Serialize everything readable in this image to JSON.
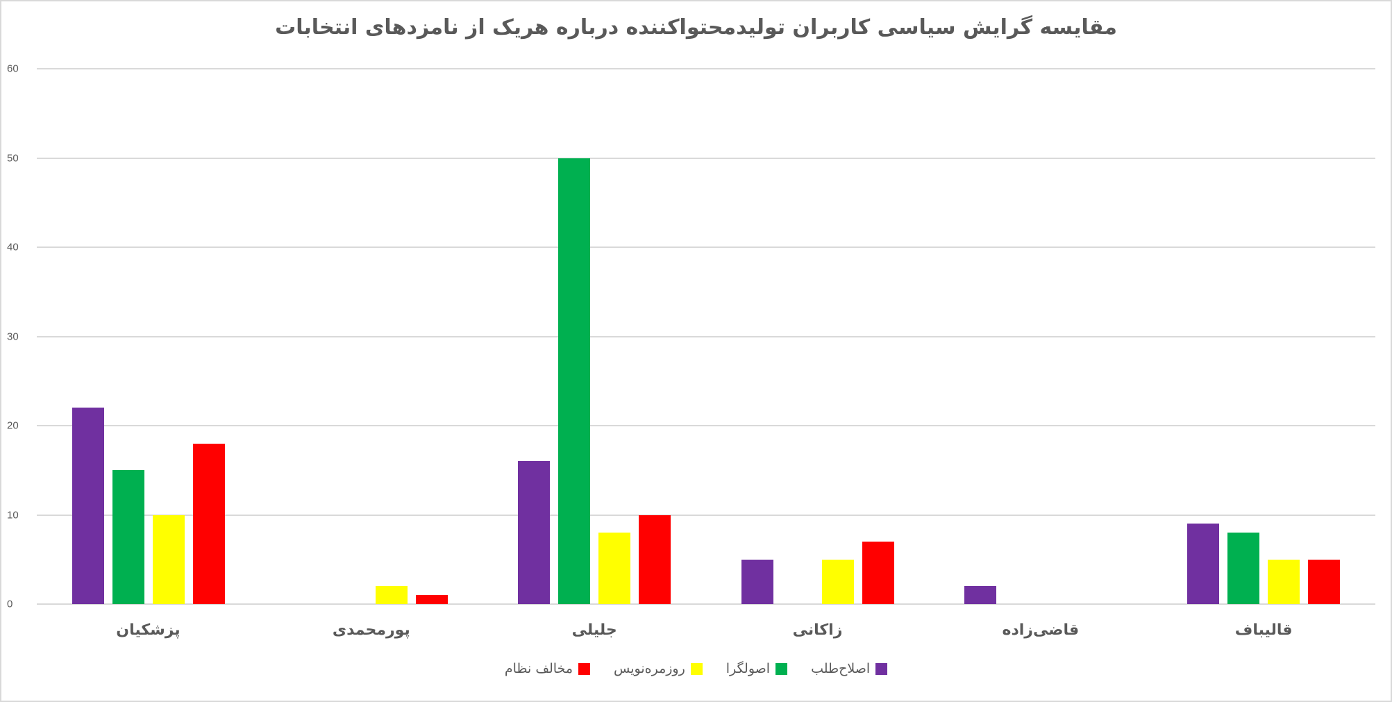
{
  "chart_data": {
    "type": "bar",
    "title": "مقایسه گرایش سیاسی کاربران تولیدمحتواکننده درباره هریک از نامزدهای انتخابات",
    "xlabel": "",
    "ylabel": "",
    "ylim": [
      0,
      60
    ],
    "yticks": [
      0,
      10,
      20,
      30,
      40,
      50,
      60
    ],
    "grid": true,
    "legend_position": "bottom",
    "categories": [
      "پزشکیان",
      "پورمحمدی",
      "جلیلی",
      "زاکانی",
      "قاضی‌زاده",
      "قالیباف"
    ],
    "series": [
      {
        "name": "اصلاح‌طلب",
        "color": "#7030A0",
        "values": [
          22,
          0,
          16,
          5,
          2,
          9
        ]
      },
      {
        "name": "اصولگرا",
        "color": "#00B050",
        "values": [
          15,
          0,
          50,
          0,
          0,
          8
        ]
      },
      {
        "name": "روزمره‌نویس",
        "color": "#FFFF00",
        "values": [
          10,
          2,
          8,
          5,
          0,
          5
        ]
      },
      {
        "name": "مخالف نظام",
        "color": "#FF0000",
        "values": [
          18,
          1,
          10,
          7,
          0,
          5
        ]
      }
    ]
  },
  "colors": {
    "grid": "#d9d9d9",
    "text": "#595959",
    "border": "#d9d9d9"
  }
}
